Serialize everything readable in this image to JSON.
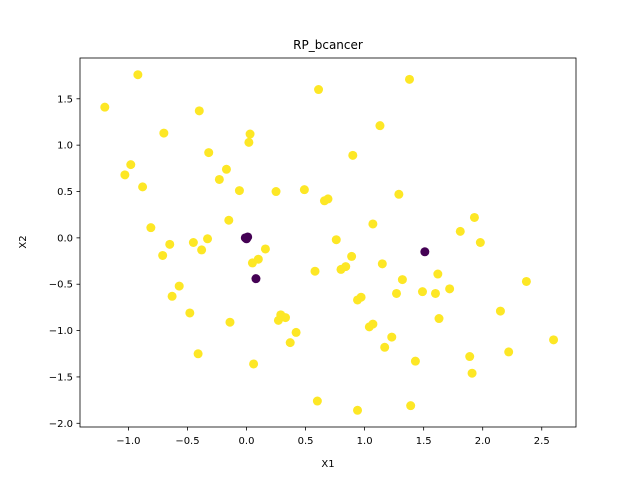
{
  "chart_data": {
    "type": "scatter",
    "title": "RP_bcancer",
    "xlabel": "X1",
    "ylabel": "X2",
    "xlim": [
      -1.41,
      2.79
    ],
    "ylim": [
      -2.04,
      1.94
    ],
    "xticks": [
      -1.0,
      -0.5,
      0.0,
      0.5,
      1.0,
      1.5,
      2.0,
      2.5
    ],
    "xtick_labels": [
      "−1.0",
      "−0.5",
      "0.0",
      "0.5",
      "1.0",
      "1.5",
      "2.0",
      "2.5"
    ],
    "yticks": [
      -2.0,
      -1.5,
      -1.0,
      -0.5,
      0.0,
      0.5,
      1.0,
      1.5
    ],
    "ytick_labels": [
      "−2.0",
      "−1.5",
      "−1.0",
      "−0.5",
      "0.0",
      "0.5",
      "1.0",
      "1.5"
    ],
    "grid": false,
    "legend": "none",
    "colors": {
      "class_0": "#440154",
      "class_1": "#fde725"
    },
    "series": [
      {
        "color": "#fde725",
        "points": [
          [
            -1.2,
            1.41
          ],
          [
            -0.92,
            1.76
          ],
          [
            -0.4,
            1.37
          ],
          [
            -0.7,
            1.13
          ],
          [
            -0.32,
            0.92
          ],
          [
            -0.98,
            0.79
          ],
          [
            -1.03,
            0.68
          ],
          [
            -0.88,
            0.55
          ],
          [
            -0.23,
            0.63
          ],
          [
            -0.17,
            0.74
          ],
          [
            -0.06,
            0.51
          ],
          [
            0.02,
            1.03
          ],
          [
            0.03,
            1.12
          ],
          [
            0.25,
            0.5
          ],
          [
            0.49,
            0.52
          ],
          [
            0.61,
            1.6
          ],
          [
            0.66,
            0.4
          ],
          [
            0.69,
            0.42
          ],
          [
            0.9,
            0.89
          ],
          [
            1.13,
            1.21
          ],
          [
            1.38,
            1.71
          ],
          [
            1.29,
            0.47
          ],
          [
            1.07,
            0.15
          ],
          [
            0.76,
            -0.02
          ],
          [
            0.89,
            -0.2
          ],
          [
            0.84,
            -0.31
          ],
          [
            0.8,
            -0.34
          ],
          [
            0.58,
            -0.36
          ],
          [
            -0.81,
            0.11
          ],
          [
            -0.65,
            -0.07
          ],
          [
            -0.71,
            -0.19
          ],
          [
            -0.45,
            -0.05
          ],
          [
            -0.33,
            -0.01
          ],
          [
            -0.38,
            -0.13
          ],
          [
            -0.15,
            0.19
          ],
          [
            0.05,
            -0.27
          ],
          [
            0.1,
            -0.23
          ],
          [
            0.16,
            -0.12
          ],
          [
            -0.57,
            -0.52
          ],
          [
            -0.63,
            -0.63
          ],
          [
            -0.48,
            -0.81
          ],
          [
            -0.14,
            -0.91
          ],
          [
            0.27,
            -0.89
          ],
          [
            0.29,
            -0.83
          ],
          [
            0.33,
            -0.86
          ],
          [
            0.42,
            -1.02
          ],
          [
            0.37,
            -1.13
          ],
          [
            0.06,
            -1.36
          ],
          [
            -0.41,
            -1.25
          ],
          [
            0.6,
            -1.76
          ],
          [
            0.94,
            -1.86
          ],
          [
            0.94,
            -0.67
          ],
          [
            0.97,
            -0.64
          ],
          [
            1.04,
            -0.96
          ],
          [
            1.07,
            -0.93
          ],
          [
            1.15,
            -0.28
          ],
          [
            1.27,
            -0.6
          ],
          [
            1.32,
            -0.45
          ],
          [
            1.17,
            -1.18
          ],
          [
            1.23,
            -1.07
          ],
          [
            1.43,
            -1.33
          ],
          [
            1.39,
            -1.81
          ],
          [
            1.49,
            -0.58
          ],
          [
            1.6,
            -0.6
          ],
          [
            1.62,
            -0.39
          ],
          [
            1.63,
            -0.87
          ],
          [
            1.72,
            -0.55
          ],
          [
            1.81,
            0.07
          ],
          [
            1.93,
            0.22
          ],
          [
            1.98,
            -0.05
          ],
          [
            1.89,
            -1.28
          ],
          [
            1.91,
            -1.46
          ],
          [
            2.15,
            -0.79
          ],
          [
            2.22,
            -1.23
          ],
          [
            2.37,
            -0.47
          ],
          [
            2.6,
            -1.1
          ]
        ]
      },
      {
        "color": "#440154",
        "points": [
          [
            -0.01,
            0.0
          ],
          [
            0.0,
            0.0
          ],
          [
            0.01,
            0.01
          ],
          [
            0.0,
            -0.01
          ],
          [
            0.08,
            -0.44
          ],
          [
            1.51,
            -0.15
          ]
        ]
      }
    ]
  }
}
